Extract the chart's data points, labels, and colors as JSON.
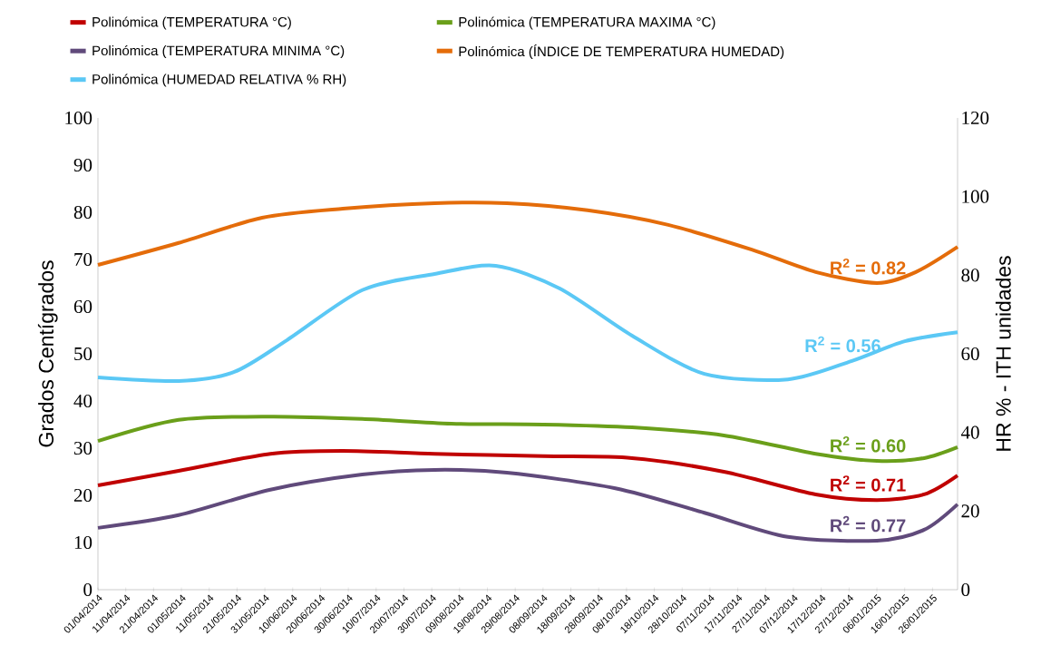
{
  "chart_data": {
    "type": "line",
    "ylabel": "Grados  Centígrados",
    "y2label": "HR % - ITH unidades",
    "legend": "top",
    "xlim": [
      "2014-04-01",
      "2015-02-04"
    ],
    "xticks": [
      {
        "value": "2014-04-01",
        "label": "01/04/2014"
      },
      {
        "value": "2014-04-11",
        "label": "11/04/2014"
      },
      {
        "value": "2014-04-21",
        "label": "21/04/2014"
      },
      {
        "value": "2014-05-01",
        "label": "01/05/2014"
      },
      {
        "value": "2014-05-11",
        "label": "11/05/2014"
      },
      {
        "value": "2014-05-21",
        "label": "21/05/2014"
      },
      {
        "value": "2014-05-31",
        "label": "31/05/2014"
      },
      {
        "value": "2014-06-10",
        "label": "10/06/2014"
      },
      {
        "value": "2014-06-20",
        "label": "20/06/2014"
      },
      {
        "value": "2014-06-30",
        "label": "30/06/2014"
      },
      {
        "value": "2014-07-10",
        "label": "10/07/2014"
      },
      {
        "value": "2014-07-20",
        "label": "20/07/2014"
      },
      {
        "value": "2014-07-30",
        "label": "30/07/2014"
      },
      {
        "value": "2014-08-09",
        "label": "09/08/2014"
      },
      {
        "value": "2014-08-19",
        "label": "19/08/2014"
      },
      {
        "value": "2014-08-29",
        "label": "29/08/2014"
      },
      {
        "value": "2014-09-08",
        "label": "08/09/2014"
      },
      {
        "value": "2014-09-18",
        "label": "18/09/2014"
      },
      {
        "value": "2014-09-28",
        "label": "28/09/2014"
      },
      {
        "value": "2014-10-08",
        "label": "08/10/2014"
      },
      {
        "value": "2014-10-18",
        "label": "18/10/2014"
      },
      {
        "value": "2014-10-28",
        "label": "28/10/2014"
      },
      {
        "value": "2014-11-07",
        "label": "07/11/2014"
      },
      {
        "value": "2014-11-17",
        "label": "17/11/2014"
      },
      {
        "value": "2014-11-27",
        "label": "27/11/2014"
      },
      {
        "value": "2014-12-07",
        "label": "07/12/2014"
      },
      {
        "value": "2014-12-17",
        "label": "17/12/2014"
      },
      {
        "value": "2014-12-27",
        "label": "27/12/2014"
      },
      {
        "value": "2015-01-06",
        "label": "06/01/2015"
      },
      {
        "value": "2015-01-16",
        "label": "16/01/2015"
      },
      {
        "value": "2015-01-26",
        "label": "26/01/2015"
      }
    ],
    "ylim": [
      0,
      100
    ],
    "yticks": [
      0,
      10,
      20,
      30,
      40,
      50,
      60,
      70,
      80,
      90,
      100
    ],
    "y2lim": [
      0,
      120
    ],
    "y2ticks": [
      0,
      20,
      40,
      60,
      80,
      100,
      120
    ],
    "series": [
      {
        "name": "Polinómica (TEMPERATURA °C)",
        "color": "#c00000",
        "x": [
          "2014-04-01",
          "2014-04-30",
          "2014-06-02",
          "2014-06-28",
          "2014-07-31",
          "2014-09-08",
          "2014-10-10",
          "2014-11-12",
          "2014-12-15",
          "2015-01-06",
          "2015-01-23",
          "2015-02-04"
        ],
        "values": [
          22.1,
          25.2,
          28.8,
          29.4,
          28.8,
          28.3,
          27.9,
          25,
          20.2,
          19,
          20.2,
          24.2
        ]
      },
      {
        "name": "Polinómica (TEMPERATURA MAXIMA °C)",
        "color": "#6a9f1a",
        "x": [
          "2014-04-01",
          "2014-04-30",
          "2014-06-02",
          "2014-07-05",
          "2014-08-06",
          "2014-09-08",
          "2014-10-10",
          "2014-11-12",
          "2014-12-15",
          "2015-01-06",
          "2015-01-23",
          "2015-02-04"
        ],
        "values": [
          31.5,
          36,
          36.7,
          36.2,
          35.2,
          35,
          34.4,
          32.7,
          28.8,
          27.3,
          27.9,
          30.2
        ]
      },
      {
        "name": "Polinómica (TEMPERATURA MINIMA °C)",
        "color": "#604a7b",
        "x": [
          "2014-04-01",
          "2014-04-30",
          "2014-06-02",
          "2014-07-05",
          "2014-07-31",
          "2014-08-26",
          "2014-10-04",
          "2014-11-05",
          "2014-12-05",
          "2015-01-06",
          "2015-01-23",
          "2015-02-04"
        ],
        "values": [
          13.1,
          15.8,
          21.2,
          24.4,
          25.4,
          24.8,
          21.5,
          16.3,
          11.2,
          10.4,
          12.7,
          18.1
        ]
      },
      {
        "name": "Polinómica (ÍNDICE DE TEMPERATURA HUMEDAD)",
        "color": "#e46c0a",
        "axis": "y2",
        "x": [
          "2014-04-01",
          "2014-04-30",
          "2014-05-30",
          "2014-06-28",
          "2014-07-31",
          "2014-08-26",
          "2014-09-24",
          "2014-10-23",
          "2014-11-22",
          "2014-12-15",
          "2015-01-06",
          "2015-01-20",
          "2015-02-04"
        ],
        "values": [
          82.6,
          88.2,
          94.6,
          96.9,
          98.3,
          98.3,
          96.5,
          92.8,
          86.5,
          80.8,
          78,
          80.8,
          87.2
        ]
      },
      {
        "name": "Polinómica (HUMEDAD RELATIVA % RH)",
        "color": "#5bc8f5",
        "axis": "y2",
        "x": [
          "2014-04-01",
          "2014-04-30",
          "2014-05-20",
          "2014-06-08",
          "2014-07-05",
          "2014-07-31",
          "2014-08-22",
          "2014-09-14",
          "2014-10-10",
          "2014-11-05",
          "2014-12-05",
          "2014-12-28",
          "2015-01-16",
          "2015-02-04"
        ],
        "values": [
          54,
          53.1,
          55.4,
          63.5,
          76.2,
          80.3,
          82.4,
          76.6,
          64.6,
          54.9,
          53.5,
          58.2,
          63.2,
          65.5
        ]
      }
    ],
    "annotations": [
      "R$^{2}$ = 0.71",
      "R$^{2}$ = 0.60",
      "R$^{2}$ = 0.77",
      "R$^{2}$ = 0.82",
      "R$^{2}$ = 0.56"
    ]
  }
}
